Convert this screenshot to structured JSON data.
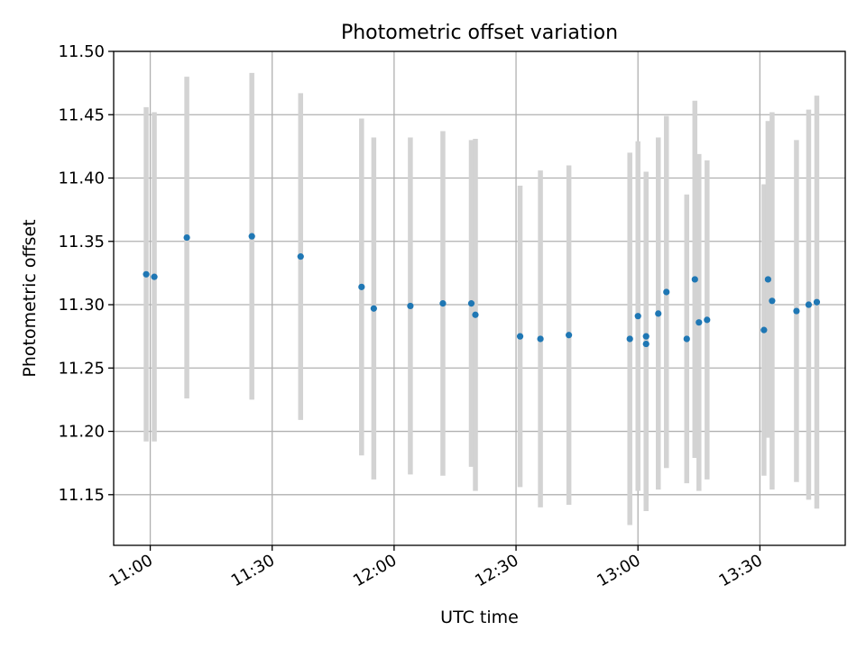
{
  "chart_data": {
    "type": "scatter",
    "title": "Photometric offset variation",
    "xlabel": "UTC time",
    "ylabel": "Photometric offset",
    "grid": true,
    "legend": "none",
    "xlim": [
      "10:51",
      "13:51"
    ],
    "ylim": [
      11.11,
      11.5
    ],
    "x_ticks": [
      "11:00",
      "11:30",
      "12:00",
      "12:30",
      "13:00",
      "13:30"
    ],
    "y_ticks": [
      "11.15",
      "11.20",
      "11.25",
      "11.30",
      "11.35",
      "11.40",
      "11.45",
      "11.50"
    ],
    "colors": {
      "point": "#1f77b4",
      "errorbar": "#d3d3d3",
      "grid": "#b0b0b0"
    },
    "series": [
      {
        "points": [
          {
            "x": "10:59",
            "y": 11.324,
            "err": 0.132
          },
          {
            "x": "11:01",
            "y": 11.322,
            "err": 0.13
          },
          {
            "x": "11:09",
            "y": 11.353,
            "err": 0.127
          },
          {
            "x": "11:25",
            "y": 11.354,
            "err": 0.129
          },
          {
            "x": "11:37",
            "y": 11.338,
            "err": 0.129
          },
          {
            "x": "11:52",
            "y": 11.314,
            "err": 0.133
          },
          {
            "x": "11:55",
            "y": 11.297,
            "err": 0.135
          },
          {
            "x": "12:04",
            "y": 11.299,
            "err": 0.133
          },
          {
            "x": "12:12",
            "y": 11.301,
            "err": 0.136
          },
          {
            "x": "12:19",
            "y": 11.301,
            "err": 0.129
          },
          {
            "x": "12:20",
            "y": 11.292,
            "err": 0.139
          },
          {
            "x": "12:31",
            "y": 11.275,
            "err": 0.119
          },
          {
            "x": "12:36",
            "y": 11.273,
            "err": 0.133
          },
          {
            "x": "12:43",
            "y": 11.276,
            "err": 0.134
          },
          {
            "x": "12:58",
            "y": 11.273,
            "err": 0.147
          },
          {
            "x": "13:00",
            "y": 11.291,
            "err": 0.138
          },
          {
            "x": "13:02",
            "y": 11.269,
            "err": 0.132
          },
          {
            "x": "13:02",
            "y": 11.275,
            "err": 0.13
          },
          {
            "x": "13:05",
            "y": 11.293,
            "err": 0.139
          },
          {
            "x": "13:07",
            "y": 11.31,
            "err": 0.139
          },
          {
            "x": "13:12",
            "y": 11.273,
            "err": 0.114
          },
          {
            "x": "13:14",
            "y": 11.32,
            "err": 0.141
          },
          {
            "x": "13:15",
            "y": 11.286,
            "err": 0.133
          },
          {
            "x": "13:17",
            "y": 11.288,
            "err": 0.126
          },
          {
            "x": "13:31",
            "y": 11.28,
            "err": 0.115
          },
          {
            "x": "13:32",
            "y": 11.32,
            "err": 0.125
          },
          {
            "x": "13:33",
            "y": 11.303,
            "err": 0.149
          },
          {
            "x": "13:39",
            "y": 11.295,
            "err": 0.135
          },
          {
            "x": "13:42",
            "y": 11.3,
            "err": 0.154
          },
          {
            "x": "13:44",
            "y": 11.302,
            "err": 0.163
          }
        ]
      }
    ]
  }
}
